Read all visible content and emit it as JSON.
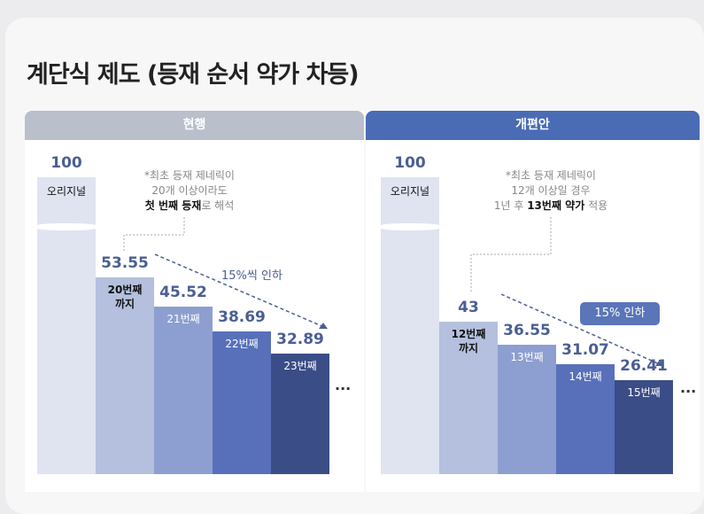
{
  "title": "계단식 제도 (등재 순서 약가 차등)",
  "chart_data": [
    {
      "type": "bar",
      "panel": "현행",
      "title": "현행",
      "categories": [
        "오리지널",
        "20번째 까지",
        "21번째",
        "22번째",
        "23번째"
      ],
      "values": [
        100,
        53.55,
        45.52,
        38.69,
        32.89
      ],
      "note": {
        "line1": "*최초 등재 제네릭이",
        "line2": "20개 이상이라도",
        "bold": "첫 번째 등재",
        "rest": "로 해석"
      },
      "trend_label": "15%씩 인하",
      "more": "...",
      "colors": [
        "#dfe4f0",
        "#b5c0de",
        "#8d9fd0",
        "#5870ba",
        "#3b4d86"
      ]
    },
    {
      "type": "bar",
      "panel": "개편안",
      "title": "개편안",
      "categories": [
        "오리지널",
        "12번째 까지",
        "13번째",
        "14번째",
        "15번째"
      ],
      "values": [
        100,
        43,
        36.55,
        31.07,
        26.41
      ],
      "note": {
        "line1": "*최초 등재 제네릭이",
        "line2": "12개 이상일 경우",
        "pre": "1년 후 ",
        "bold": "13번째 약가",
        "rest": " 적용"
      },
      "trend_label": "15% 인하",
      "more": "...",
      "colors": [
        "#dfe4f0",
        "#b5c0de",
        "#8d9fd0",
        "#5870ba",
        "#3b4d86"
      ]
    }
  ]
}
